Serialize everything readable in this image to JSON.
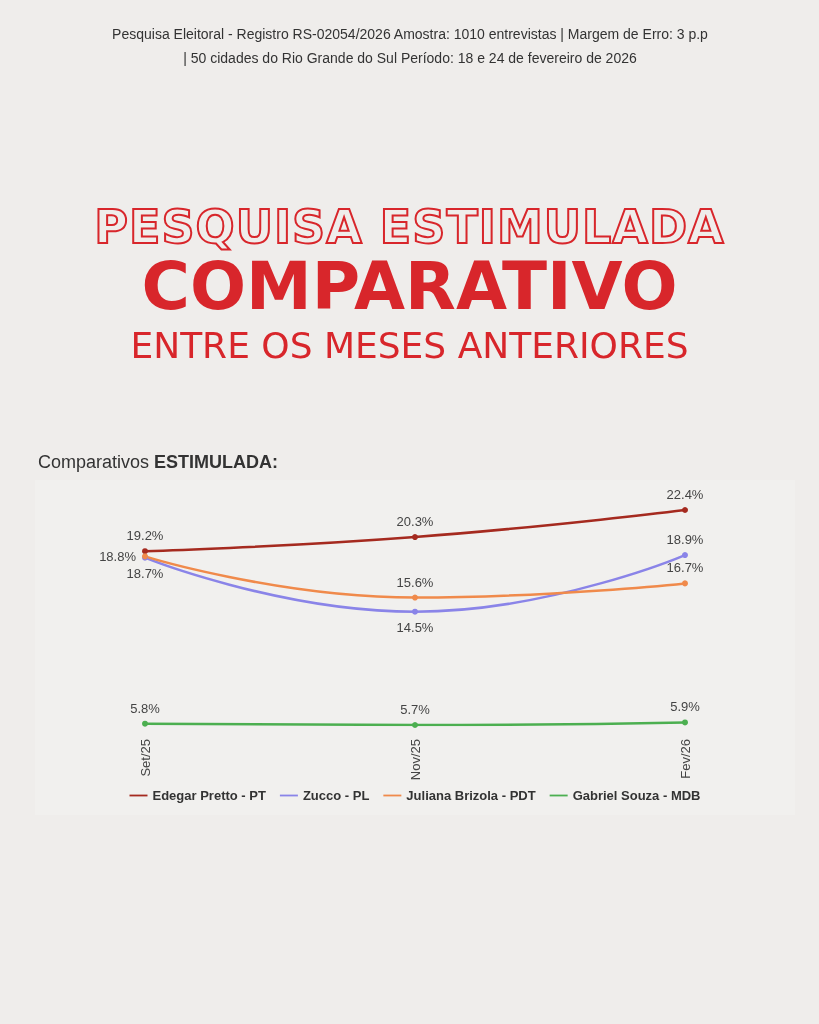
{
  "chart_data": {
    "type": "line",
    "title": "PESQUISA ESTIMULADA",
    "subtitle": "COMPARATIVO",
    "annotations": [
      "Pesquisa Eleitoral - Registro RS-02054/2026 Amostra: 1010 entrevistas | Margem de Erro: 3 p.p | 50 cidades do Rio Grande do Sul Período: 18 e 24 de fevereiro de 2026",
      "ENTRE OS MESES ANTERIORES",
      "Comparativos ESTIMULADA:"
    ],
    "categories": [
      "Set/25",
      "Nov/25",
      "Fev/26"
    ],
    "series": [
      {
        "name": "Edegar Pretto - PT",
        "color": "#a52a1f",
        "values": [
          19.2,
          20.3,
          22.4
        ],
        "value_labels": [
          "19.2%",
          "20.3%",
          "22.4%"
        ]
      },
      {
        "name": "Zucco - PL",
        "color": "#8a84e8",
        "values": [
          18.7,
          14.5,
          18.9
        ],
        "value_labels": [
          "18.7%",
          "14.5%",
          "18.9%"
        ]
      },
      {
        "name": "Juliana Brizola - PDT",
        "color": "#f08a4b",
        "values": [
          18.8,
          15.6,
          16.7
        ],
        "value_labels": [
          "18.8%",
          "15.6%",
          "16.7%"
        ]
      },
      {
        "name": "Gabriel Souza - MDB",
        "color": "#4caf50",
        "values": [
          5.8,
          5.7,
          5.9
        ],
        "value_labels": [
          "5.8%",
          "5.7%",
          "5.9%"
        ]
      }
    ],
    "legend": "bottom",
    "marker": "circle",
    "line_style": "solid"
  }
}
